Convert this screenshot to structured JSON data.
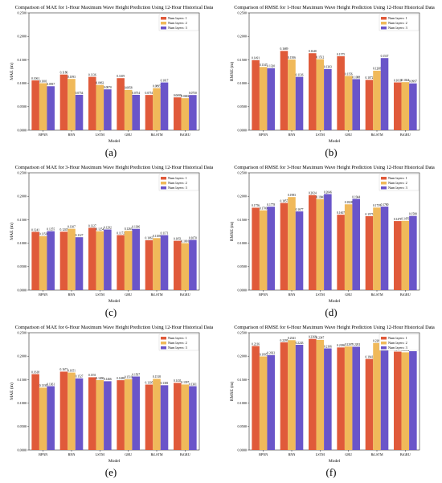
{
  "colors": [
    "#e05a3a",
    "#f0b95a",
    "#6a55c9"
  ],
  "panels": [
    {
      "label": "(a)",
      "chart_data": {
        "type": "bar",
        "title": "Comparison of MAE for 1-Hour Maximum Wave Height Prediction Using 12-Hour Historical Data",
        "xlabel": "Model",
        "ylabel": "MAE (m)",
        "ylim": [
          0,
          0.25
        ],
        "yticks": [
          "0.0000",
          "0.0500",
          "0.1000",
          "0.1500",
          "0.2000",
          "0.2500"
        ],
        "categories": [
          "BPNN",
          "RNN",
          "LSTM",
          "GRU",
          "BiLSTM",
          "BiGRU"
        ],
        "legend": {
          "position": "top-right"
        },
        "series": [
          {
            "name": "Num layers: 1",
            "values": [
              0.1061,
              0.1186,
              0.1136,
              0.1109,
              0.0751,
              0.0699
            ],
            "labels": [
              "0.1061",
              "0.1186",
              "0.1136",
              "0.1109",
              "0.0751",
              "0.0699"
            ]
          },
          {
            "name": "Num layers: 2",
            "values": [
              0.1001,
              0.1093,
              0.0963,
              0.0858,
              0.0895,
              0.0682
            ],
            "labels": [
              "0.1001",
              "0.1093",
              "0.0963",
              "0.0858",
              "0.0895",
              "0.0682"
            ]
          },
          {
            "name": "Num layers: 3",
            "values": [
              0.0937,
              0.0754,
              0.087,
              0.0754,
              0.1017,
              0.075
            ],
            "labels": [
              "0.0937",
              "0.0754",
              "0.0870",
              "0.0754",
              "0.1017",
              "0.0750"
            ]
          }
        ]
      }
    },
    {
      "label": "(b)",
      "chart_data": {
        "type": "bar",
        "title": "Comparison of RMSE for 1-Hour Maximum Wave Height Prediction Using 12-Hour Historical Data",
        "xlabel": "Model",
        "ylabel": "RMSE (m)",
        "ylim": [
          0,
          0.25
        ],
        "yticks": [
          "0.0000",
          "0.0500",
          "0.1000",
          "0.1500",
          "0.2000",
          "0.2500"
        ],
        "categories": [
          "BPNN",
          "RNN",
          "LSTM",
          "GRU",
          "BiLSTM",
          "BiGRU"
        ],
        "legend": {
          "position": "top-right"
        },
        "series": [
          {
            "name": "Num layers: 1",
            "values": [
              0.1491,
              0.1689,
              0.164,
              0.1575,
              0.1072,
              0.1018
            ],
            "labels": [
              "0.1491",
              "0.1689",
              "0.1640",
              "0.1575",
              "0.1072",
              "0.1018"
            ]
          },
          {
            "name": "Num layers: 2",
            "values": [
              0.1347,
              0.1506,
              0.1512,
              0.1156,
              0.1268,
              0.1024
            ],
            "labels": [
              "0.1347",
              "0.1506",
              "0.1512",
              "0.1156",
              "0.1268",
              "0.1024"
            ]
          },
          {
            "name": "Num layers: 3",
            "values": [
              0.132,
              0.1136,
              0.1303,
              0.1088,
              0.1537,
              0.0997
            ],
            "labels": [
              "0.1320",
              "0.1136",
              "0.1303",
              "0.1088",
              "0.1537",
              "0.0997"
            ]
          }
        ]
      }
    },
    {
      "label": "(c)",
      "chart_data": {
        "type": "bar",
        "title": "Comparison of MAE for 3-Hour Maximum Wave Height Prediction Using 12-Hour Historical Data",
        "xlabel": "Model",
        "ylabel": "MAE (m)",
        "ylim": [
          0,
          0.25
        ],
        "yticks": [
          "0.0000",
          "0.0500",
          "0.1000",
          "0.1500",
          "0.2000",
          "0.2500"
        ],
        "categories": [
          "BPNN",
          "RNN",
          "LSTM",
          "GRU",
          "BiLSTM",
          "BiGRU"
        ],
        "legend": {
          "position": "top-right"
        },
        "series": [
          {
            "name": "Num layers: 1",
            "values": [
              0.1241,
              0.1245,
              0.1327,
              0.1172,
              0.1063,
              0.1051
            ],
            "labels": [
              "0.1241",
              "0.1245",
              "0.1327",
              "0.1172",
              "0.1063",
              "0.1051"
            ]
          },
          {
            "name": "Num layers: 2",
            "values": [
              0.115,
              0.1307,
              0.1254,
              0.1263,
              0.1108,
              0.1001
            ],
            "labels": [
              "0.1150",
              "0.1307",
              "0.1254",
              "0.1263",
              "0.1108",
              "0.1001"
            ]
          },
          {
            "name": "Num layers: 3",
            "values": [
              0.1255,
              0.1127,
              0.1292,
              0.1306,
              0.1171,
              0.107
            ],
            "labels": [
              "0.1255",
              "0.1127",
              "0.1292",
              "0.1306",
              "0.1171",
              "0.1070"
            ]
          }
        ]
      }
    },
    {
      "label": "(d)",
      "chart_data": {
        "type": "bar",
        "title": "Comparison of RMSE for 3-Hour Maximum Wave Height Prediction Using 12-Hour Historical Data",
        "xlabel": "Model",
        "ylabel": "RMSE (m)",
        "ylim": [
          0,
          0.25
        ],
        "yticks": [
          "0.0000",
          "0.0500",
          "0.1000",
          "0.1500",
          "0.2000",
          "0.2500"
        ],
        "categories": [
          "BPNN",
          "RNN",
          "LSTM",
          "GRU",
          "BiLSTM",
          "BiGRU"
        ],
        "legend": {
          "position": "top-right"
        },
        "series": [
          {
            "name": "Num layers: 1",
            "values": [
              0.1756,
              0.1857,
              0.2024,
              0.1607,
              0.1575,
              0.1471
            ],
            "labels": [
              "0.1756",
              "0.1857",
              "0.2024",
              "0.1607",
              "0.1575",
              "0.1471"
            ]
          },
          {
            "name": "Num layers: 2",
            "values": [
              0.17,
              0.1983,
              0.194,
              0.1828,
              0.1759,
              0.1476
            ],
            "labels": [
              "0.1700",
              "0.1983",
              "0.1940",
              "0.1828",
              "0.1759",
              "0.1476"
            ]
          },
          {
            "name": "Num layers: 3",
            "values": [
              0.1778,
              0.1677,
              0.2046,
              0.1944,
              0.178,
              0.158
            ],
            "labels": [
              "0.1778",
              "0.1677",
              "0.2046",
              "0.1944",
              "0.1780",
              "0.1580"
            ]
          }
        ]
      }
    },
    {
      "label": "(e)",
      "chart_data": {
        "type": "bar",
        "title": "Comparison of MAE for 6-Hour Maximum Wave Height Prediction Using 12-Hour Historical Data",
        "xlabel": "Model",
        "ylabel": "MAE (m)",
        "ylim": [
          0,
          0.25
        ],
        "yticks": [
          "0.0000",
          "0.0500",
          "0.1000",
          "0.1500",
          "0.2000",
          "0.2500"
        ],
        "categories": [
          "BPNN",
          "RNN",
          "LSTM",
          "GRU",
          "BiLSTM",
          "BiGRU"
        ],
        "legend": {
          "position": "top-right"
        },
        "series": [
          {
            "name": "Num layers: 1",
            "values": [
              0.1618,
              0.1671,
              0.1551,
              0.1488,
              0.1395,
              0.1431
            ],
            "labels": [
              "0.1618",
              "0.1671",
              "0.1551",
              "0.1488",
              "0.1395",
              "0.1431"
            ]
          },
          {
            "name": "Num layers: 2",
            "values": [
              0.133,
              0.1651,
              0.149,
              0.151,
              0.1518,
              0.1397
            ],
            "labels": [
              "0.1330",
              "0.1651",
              "0.1490",
              "0.1510",
              "0.1518",
              "0.1397"
            ]
          },
          {
            "name": "Num layers: 3",
            "values": [
              0.1361,
              0.1527,
              0.1466,
              0.1567,
              0.1381,
              0.1361
            ],
            "labels": [
              "0.1361",
              "0.1527",
              "0.1466",
              "0.1567",
              "0.1381",
              "0.1361"
            ]
          }
        ]
      }
    },
    {
      "label": "(f)",
      "chart_data": {
        "type": "bar",
        "title": "Comparison of RMSE for 6-Hour Maximum Wave Height Prediction Using 12-Hour Historical Data",
        "xlabel": "Model",
        "ylabel": "RMSE (m)",
        "ylim": [
          0,
          0.25
        ],
        "yticks": [
          "0.0000",
          "0.0500",
          "0.1000",
          "0.1500",
          "0.2000",
          "0.2500"
        ],
        "categories": [
          "BPNN",
          "RNN",
          "LSTM",
          "GRU",
          "BiLSTM",
          "BiGRU"
        ],
        "legend": {
          "position": "top-right"
        },
        "series": [
          {
            "name": "Num layers: 1",
            "values": [
              0.2216,
              0.2295,
              0.2368,
              0.2186,
              0.1941,
              0.2097
            ],
            "labels": [
              "0.2216",
              "0.2295",
              "0.2368",
              "0.2186",
              "0.1941",
              "0.2097"
            ]
          },
          {
            "name": "Num layers: 2",
            "values": [
              0.1995,
              0.2341,
              0.2347,
              0.2207,
              0.2281,
              0.2082
            ],
            "labels": [
              "0.1995",
              "0.2341",
              "0.2347",
              "0.2207",
              "0.2281",
              "0.2082"
            ]
          },
          {
            "name": "Num layers: 3",
            "values": [
              0.2022,
              0.2243,
              0.2166,
              0.2202,
              0.2172,
              0.2106
            ],
            "labels": [
              "0.2022",
              "0.2243",
              "0.2166",
              "0.2202",
              "0.2172",
              "0.2106"
            ]
          }
        ]
      }
    }
  ]
}
